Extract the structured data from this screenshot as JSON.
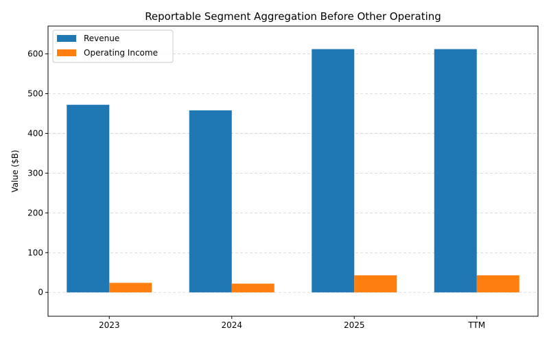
{
  "chart_data": {
    "type": "bar",
    "title": "Reportable Segment Aggregation Before Other Operating",
    "xlabel": "",
    "ylabel": "Value ($B)",
    "categories": [
      "2023",
      "2024",
      "2025",
      "TTM"
    ],
    "series": [
      {
        "name": "Revenue",
        "color": "#1f77b4",
        "values": [
          472,
          458,
          612,
          612
        ]
      },
      {
        "name": "Operating Income",
        "color": "#ff7f0e",
        "values": [
          24,
          22,
          43,
          43
        ]
      }
    ],
    "ylim": [
      -60,
      670
    ],
    "yticks": [
      0,
      100,
      200,
      300,
      400,
      500,
      600
    ],
    "grid": "y-dashed",
    "legend_position": "top-left"
  }
}
